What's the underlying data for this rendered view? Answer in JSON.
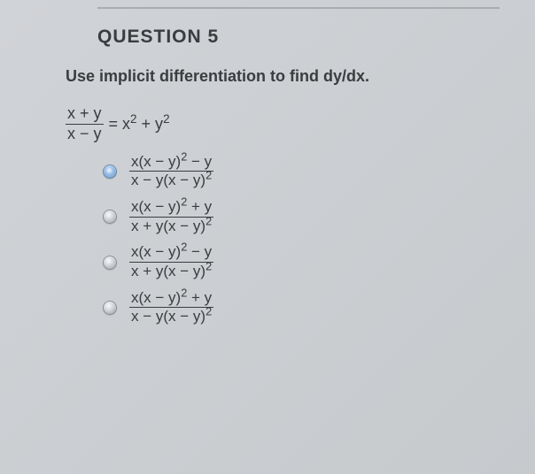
{
  "question": {
    "title": "QUESTION 5",
    "prompt": "Use implicit differentiation to find dy/dx."
  },
  "equation": {
    "frac_num": "x + y",
    "frac_den": "x − y",
    "rhs_eq": "= x",
    "rhs_exp1": "2",
    "rhs_plus": " + y",
    "rhs_exp2": "2"
  },
  "options": [
    {
      "selected": true,
      "num_a": "x(x − y)",
      "num_exp": "2",
      "num_b": " − y",
      "den_a": "x − y(x − y)",
      "den_exp": "2"
    },
    {
      "selected": false,
      "num_a": "x(x − y)",
      "num_exp": "2",
      "num_b": " + y",
      "den_a": "x + y(x − y)",
      "den_exp": "2"
    },
    {
      "selected": false,
      "num_a": "x(x − y)",
      "num_exp": "2",
      "num_b": " − y",
      "den_a": "x + y(x − y)",
      "den_exp": "2"
    },
    {
      "selected": false,
      "num_a": "x(x − y)",
      "num_exp": "2",
      "num_b": " + y",
      "den_a": "x − y(x − y)",
      "den_exp": "2"
    }
  ],
  "style": {
    "text_color": "#3a3d3f",
    "bg_color": "#c5c9cd"
  }
}
